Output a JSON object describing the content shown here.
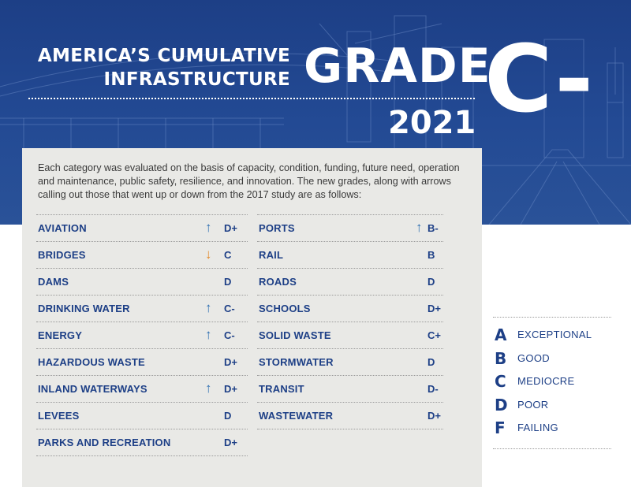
{
  "header": {
    "title_line1": "AMERICA’S CUMULATIVE",
    "title_line2": "INFRASTRUCTURE",
    "grade_word": "GRADE",
    "year": "2021",
    "overall_grade": "C-"
  },
  "intro": "Each category was evaluated on the basis of capacity, condition, funding, future need, operation and maintenance, public safety, resilience, and innovation. The new grades, along with arrows calling out those that went up or down from the 2017 study are as follows:",
  "categories_left": [
    {
      "name": "AVIATION",
      "arrow": "↑",
      "trend": "up",
      "grade": "D+"
    },
    {
      "name": "BRIDGES",
      "arrow": "↓",
      "trend": "down",
      "grade": "C"
    },
    {
      "name": "DAMS",
      "arrow": "",
      "trend": "none",
      "grade": "D"
    },
    {
      "name": "DRINKING WATER",
      "arrow": "↑",
      "trend": "up",
      "grade": "C-"
    },
    {
      "name": "ENERGY",
      "arrow": "↑",
      "trend": "up",
      "grade": "C-"
    },
    {
      "name": "HAZARDOUS WASTE",
      "arrow": "",
      "trend": "none",
      "grade": "D+"
    },
    {
      "name": "INLAND WATERWAYS",
      "arrow": "↑",
      "trend": "up",
      "grade": "D+"
    },
    {
      "name": "LEVEES",
      "arrow": "",
      "trend": "none",
      "grade": "D"
    },
    {
      "name": "PARKS AND RECREATION",
      "arrow": "",
      "trend": "none",
      "grade": "D+"
    }
  ],
  "categories_right": [
    {
      "name": "PORTS",
      "arrow": "↑",
      "trend": "up",
      "grade": "B-"
    },
    {
      "name": "RAIL",
      "arrow": "",
      "trend": "none",
      "grade": "B"
    },
    {
      "name": "ROADS",
      "arrow": "",
      "trend": "none",
      "grade": "D"
    },
    {
      "name": "SCHOOLS",
      "arrow": "",
      "trend": "none",
      "grade": "D+"
    },
    {
      "name": "SOLID WASTE",
      "arrow": "",
      "trend": "none",
      "grade": "C+"
    },
    {
      "name": "STORMWATER",
      "arrow": "",
      "trend": "none",
      "grade": "D"
    },
    {
      "name": "TRANSIT",
      "arrow": "",
      "trend": "none",
      "grade": "D-"
    },
    {
      "name": "WASTEWATER",
      "arrow": "",
      "trend": "none",
      "grade": "D+"
    }
  ],
  "legend": [
    {
      "letter": "A",
      "label": "EXCEPTIONAL"
    },
    {
      "letter": "B",
      "label": "GOOD"
    },
    {
      "letter": "C",
      "label": "MEDIOCRE"
    },
    {
      "letter": "D",
      "label": "POOR"
    },
    {
      "letter": "F",
      "label": "FAILING"
    }
  ],
  "colors": {
    "brand_blue": "#1d3f86",
    "arrow_up": "#2e6fb2",
    "arrow_down": "#e48a29",
    "panel": "#e9e9e6"
  },
  "icons": {
    "up": "arrow-up-icon",
    "down": "arrow-down-icon"
  }
}
